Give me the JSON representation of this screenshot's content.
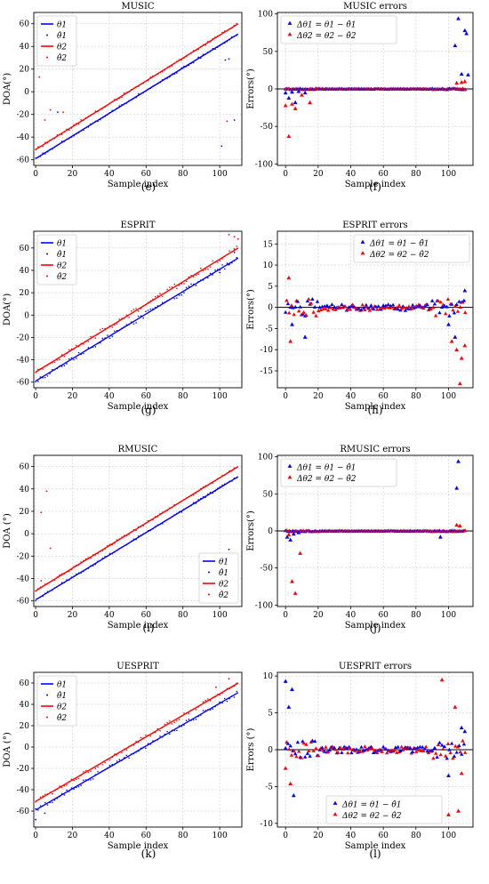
{
  "colors": {
    "series1": "#0000ff",
    "series2": "#ff0000",
    "grid": "#cccccc",
    "axis": "#000000"
  },
  "chart_data": [
    {
      "id": "e",
      "type": "scatter",
      "title": "MUSIC",
      "caption": "(e)",
      "xlabel": "Sample index",
      "ylabel": "DOA(°)",
      "xlim": [
        -1,
        112
      ],
      "ylim": [
        -65,
        70
      ],
      "grid": true,
      "legend_position": "upper-left",
      "xticks": [
        0,
        20,
        40,
        60,
        80,
        100
      ],
      "yticks": [
        -60,
        -40,
        -20,
        0,
        20,
        40,
        60
      ],
      "true_lines": [
        {
          "name": "θ1",
          "x": [
            0,
            110
          ],
          "y": [
            -59,
            51
          ]
        },
        {
          "name": "θ2",
          "x": [
            0,
            110
          ],
          "y": [
            -51,
            60
          ]
        }
      ],
      "estimates": {
        "names": [
          "θ̂1",
          "θ̂2"
        ],
        "noise": 1.2,
        "outliers1": [
          [
            12,
            -18
          ],
          [
            101,
            -48
          ],
          [
            103,
            28
          ],
          [
            105,
            29
          ],
          [
            108,
            -25
          ]
        ],
        "outliers2": [
          [
            5,
            -25
          ],
          [
            8,
            -16
          ],
          [
            15,
            -18
          ],
          [
            2,
            13
          ],
          [
            104,
            -26
          ]
        ]
      },
      "legend": [
        "θ1",
        "θ̂1",
        "θ2",
        "θ̂2"
      ]
    },
    {
      "id": "f",
      "type": "scatter",
      "title": "MUSIC errors",
      "caption": "(f)",
      "xlabel": "Sample index",
      "ylabel": "Errors(°)",
      "xlim": [
        -5,
        115
      ],
      "ylim": [
        -102,
        102
      ],
      "grid": true,
      "legend_position": "upper-left",
      "xticks": [
        0,
        20,
        40,
        60,
        80,
        100
      ],
      "yticks": [
        -100,
        -50,
        0,
        50,
        100
      ],
      "hline": 0,
      "errors": {
        "names": [
          "Δθ1 = θ1 − θ̂1",
          "Δθ2 = θ2 − θ̂2"
        ],
        "noise": 0.8,
        "outliers1": [
          [
            0,
            -5
          ],
          [
            2,
            -12
          ],
          [
            4,
            -4
          ],
          [
            6,
            -18
          ],
          [
            8,
            -3
          ],
          [
            12,
            -5
          ],
          [
            104,
            58
          ],
          [
            106,
            94
          ],
          [
            108,
            20
          ],
          [
            110,
            78
          ],
          [
            111,
            74
          ],
          [
            112,
            19
          ]
        ],
        "outliers2": [
          [
            0,
            -22
          ],
          [
            2,
            -63
          ],
          [
            4,
            -20
          ],
          [
            6,
            -26
          ],
          [
            10,
            -8
          ],
          [
            15,
            -18
          ],
          [
            105,
            8
          ],
          [
            108,
            9
          ],
          [
            110,
            10
          ]
        ]
      },
      "legend": [
        "Δθ1 = θ1 − θ̂1",
        "Δθ2 = θ2 − θ̂2"
      ]
    },
    {
      "id": "g",
      "type": "scatter",
      "title": "ESPRIT",
      "caption": "(g)",
      "xlabel": "Sample index",
      "ylabel": "DOA(°)",
      "xlim": [
        -1,
        112
      ],
      "ylim": [
        -65,
        75
      ],
      "grid": true,
      "legend_position": "upper-left",
      "xticks": [
        0,
        20,
        40,
        60,
        80,
        100
      ],
      "yticks": [
        -60,
        -40,
        -20,
        0,
        20,
        40,
        60
      ],
      "true_lines": [
        {
          "name": "θ1",
          "x": [
            0,
            110
          ],
          "y": [
            -59,
            51
          ]
        },
        {
          "name": "θ2",
          "x": [
            0,
            110
          ],
          "y": [
            -51,
            60
          ]
        }
      ],
      "estimates": {
        "names": [
          "θ̂1",
          "θ̂2"
        ],
        "noise": 2.5,
        "outliers1": [
          [
            100,
            38
          ],
          [
            105,
            45
          ],
          [
            108,
            56
          ]
        ],
        "outliers2": [
          [
            105,
            72
          ],
          [
            108,
            70
          ],
          [
            110,
            68
          ]
        ]
      },
      "legend": [
        "θ1",
        "θ̂1",
        "θ2",
        "θ̂2"
      ]
    },
    {
      "id": "h",
      "type": "scatter",
      "title": "ESPRIT errors",
      "caption": "(h)",
      "xlabel": "Sample index",
      "ylabel": "Errors(°)",
      "xlim": [
        -5,
        115
      ],
      "ylim": [
        -19,
        18
      ],
      "grid": true,
      "legend_position": "upper-right",
      "xticks": [
        0,
        20,
        40,
        60,
        80,
        100
      ],
      "yticks": [
        -15,
        -10,
        -5,
        0,
        5,
        10,
        15
      ],
      "hline": 0,
      "errors": {
        "names": [
          "Δθ1 = θ1 − θ̂1",
          "Δθ2 = θ2 − θ̂2"
        ],
        "noise": 2.0,
        "outliers1": [
          [
            4,
            -4
          ],
          [
            12,
            -7
          ],
          [
            100,
            -4
          ],
          [
            104,
            -7
          ],
          [
            110,
            4
          ]
        ],
        "outliers2": [
          [
            2,
            7
          ],
          [
            3,
            -8
          ],
          [
            102,
            -8
          ],
          [
            105,
            -10
          ],
          [
            107,
            -18
          ],
          [
            110,
            -9
          ],
          [
            108,
            -12
          ]
        ]
      },
      "legend": [
        "Δθ1 = θ1 − θ̂1",
        "Δθ2 = θ2 − θ̂2"
      ]
    },
    {
      "id": "i",
      "type": "scatter",
      "title": "RMUSIC",
      "caption": "(i)",
      "xlabel": "Sample index",
      "ylabel": "DOA (°)",
      "xlim": [
        -1,
        112
      ],
      "ylim": [
        -65,
        70
      ],
      "grid": true,
      "legend_position": "lower-right",
      "xticks": [
        0,
        20,
        40,
        60,
        80,
        100
      ],
      "yticks": [
        -60,
        -40,
        -20,
        0,
        20,
        40,
        60
      ],
      "true_lines": [
        {
          "name": "θ1",
          "x": [
            0,
            110
          ],
          "y": [
            -59,
            51
          ]
        },
        {
          "name": "θ2",
          "x": [
            0,
            110
          ],
          "y": [
            -51,
            60
          ]
        }
      ],
      "estimates": {
        "names": [
          "θ̂1",
          "θ̂2"
        ],
        "noise": 1.0,
        "outliers1": [
          [
            105,
            -14
          ]
        ],
        "outliers2": [
          [
            3,
            19
          ],
          [
            6,
            38
          ],
          [
            8,
            -13
          ],
          [
            3,
            -42
          ]
        ]
      },
      "legend": [
        "θ1",
        "θ̂1",
        "θ2",
        "θ̂2"
      ]
    },
    {
      "id": "j",
      "type": "scatter",
      "title": "RMUSIC errors",
      "caption": "(j)",
      "xlabel": "Sample index",
      "ylabel": "Errors(°)",
      "xlim": [
        -5,
        115
      ],
      "ylim": [
        -102,
        102
      ],
      "grid": true,
      "legend_position": "upper-left",
      "xticks": [
        0,
        20,
        40,
        60,
        80,
        100
      ],
      "yticks": [
        -100,
        -50,
        0,
        50,
        100
      ],
      "hline": 0,
      "errors": {
        "names": [
          "Δθ1 = θ1 − θ̂1",
          "Δθ2 = θ2 − θ̂2"
        ],
        "noise": 0.8,
        "outliers1": [
          [
            1,
            -8
          ],
          [
            3,
            -12
          ],
          [
            5,
            -4
          ],
          [
            8,
            -2
          ],
          [
            95,
            -8
          ],
          [
            105,
            58
          ],
          [
            106,
            94
          ]
        ],
        "outliers2": [
          [
            2,
            -5
          ],
          [
            4,
            -68
          ],
          [
            6,
            -84
          ],
          [
            9,
            -30
          ],
          [
            105,
            8
          ],
          [
            107,
            7
          ]
        ]
      },
      "legend": [
        "Δθ1 = θ1 − θ̂1",
        "Δθ2 = θ2 − θ̂2"
      ]
    },
    {
      "id": "k",
      "type": "scatter",
      "title": "UESPRIT",
      "caption": "(k)",
      "xlabel": "Sample index",
      "ylabel": "DOA (°)",
      "xlim": [
        -1,
        112
      ],
      "ylim": [
        -75,
        70
      ],
      "grid": true,
      "legend_position": "upper-left",
      "xticks": [
        0,
        20,
        40,
        60,
        80,
        100
      ],
      "yticks": [
        -60,
        -40,
        -20,
        0,
        20,
        40,
        60
      ],
      "true_lines": [
        {
          "name": "θ1",
          "x": [
            0,
            110
          ],
          "y": [
            -59,
            51
          ]
        },
        {
          "name": "θ2",
          "x": [
            0,
            110
          ],
          "y": [
            -51,
            60
          ]
        }
      ],
      "estimates": {
        "names": [
          "θ̂1",
          "θ̂2"
        ],
        "noise": 2.2,
        "outliers1": [
          [
            0,
            -68
          ],
          [
            5,
            -62
          ],
          [
            100,
            42
          ]
        ],
        "outliers2": [
          [
            98,
            56
          ],
          [
            105,
            64
          ]
        ]
      },
      "legend": [
        "θ1",
        "θ̂1",
        "θ2",
        "θ̂2"
      ]
    },
    {
      "id": "l",
      "type": "scatter",
      "title": "UESPRIT errors",
      "caption": "(l)",
      "xlabel": "Sample index",
      "ylabel": "Errors (°)",
      "xlim": [
        -5,
        115
      ],
      "ylim": [
        -10.5,
        10.5
      ],
      "grid": true,
      "legend_position": "lower-center",
      "xticks": [
        0,
        20,
        40,
        60,
        80,
        100
      ],
      "yticks": [
        -10,
        -5,
        0,
        5,
        10
      ],
      "hline": 0,
      "errors": {
        "names": [
          "Δθ1 = θ1 − θ̂1",
          "Δθ2 = θ2 − θ̂2"
        ],
        "noise": 1.3,
        "outliers1": [
          [
            0,
            9.3
          ],
          [
            2,
            5.8
          ],
          [
            4,
            8.2
          ],
          [
            5,
            -6.2
          ],
          [
            100,
            -3.5
          ],
          [
            108,
            3
          ],
          [
            110,
            2.5
          ]
        ],
        "outliers2": [
          [
            0,
            -2.5
          ],
          [
            3,
            -4.6
          ],
          [
            96,
            9.5
          ],
          [
            100,
            -8.8
          ],
          [
            104,
            5.8
          ],
          [
            106,
            -8.3
          ],
          [
            108,
            -3.2
          ]
        ]
      },
      "legend": [
        "Δθ1 = θ1 − θ̂1",
        "Δθ2 = θ2 − θ̂2"
      ]
    }
  ]
}
